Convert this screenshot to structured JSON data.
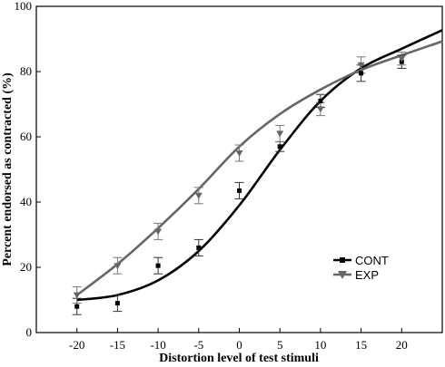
{
  "chart_data": {
    "type": "line",
    "title": "",
    "xlabel": "Distortion level of test stimuli",
    "ylabel": "Percent endorsed as contracted (%)",
    "xlim": [
      -25,
      25
    ],
    "ylim": [
      0,
      100
    ],
    "x_ticks": [
      -20,
      -15,
      -10,
      -5,
      0,
      5,
      10,
      15,
      20
    ],
    "y_ticks": [
      0,
      20,
      40,
      60,
      80,
      100
    ],
    "grid": false,
    "legend_position": "right",
    "x": [
      -20,
      -15,
      -10,
      -5,
      0,
      5,
      10,
      15,
      20
    ],
    "series": [
      {
        "name": "CONT",
        "marker": "square",
        "color": "#000000",
        "values": [
          8,
          9,
          20.5,
          26,
          43.5,
          57,
          71,
          79.5,
          83
        ],
        "error": [
          2.5,
          2.5,
          2.5,
          2.5,
          2.5,
          1.5,
          2,
          2.5,
          2
        ],
        "fit": [
          10,
          11.5,
          16,
          25,
          39,
          56,
          71,
          81,
          87
        ]
      },
      {
        "name": "EXP",
        "marker": "triangle-down",
        "color": "#666666",
        "values": [
          11.5,
          20.5,
          31,
          42,
          55,
          61,
          68.5,
          82,
          84
        ],
        "error": [
          2.5,
          2.5,
          2.5,
          2.5,
          2.5,
          2.5,
          2,
          2.5,
          2
        ],
        "fit": [
          11.5,
          21,
          32,
          44,
          57,
          67,
          74.5,
          80.5,
          85
        ]
      }
    ]
  }
}
